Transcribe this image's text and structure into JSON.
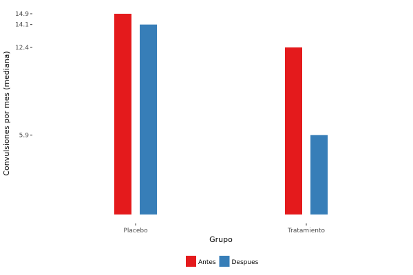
{
  "chart_data": {
    "type": "bar",
    "title": "",
    "xlabel": "Grupo",
    "ylabel": "Convulsiones por mes (mediana)",
    "categories": [
      "Placebo",
      "Tratamiento"
    ],
    "series": [
      {
        "name": "Antes",
        "values": [
          14.9,
          12.4
        ],
        "color": "#e41a1c"
      },
      {
        "name": "Despues",
        "values": [
          14.1,
          5.9
        ],
        "color": "#377eb8"
      }
    ],
    "yticks": [
      5.9,
      12.4,
      14.1,
      14.9
    ],
    "ylim": [
      0,
      14.9
    ],
    "grid": false,
    "legend_position": "bottom"
  }
}
